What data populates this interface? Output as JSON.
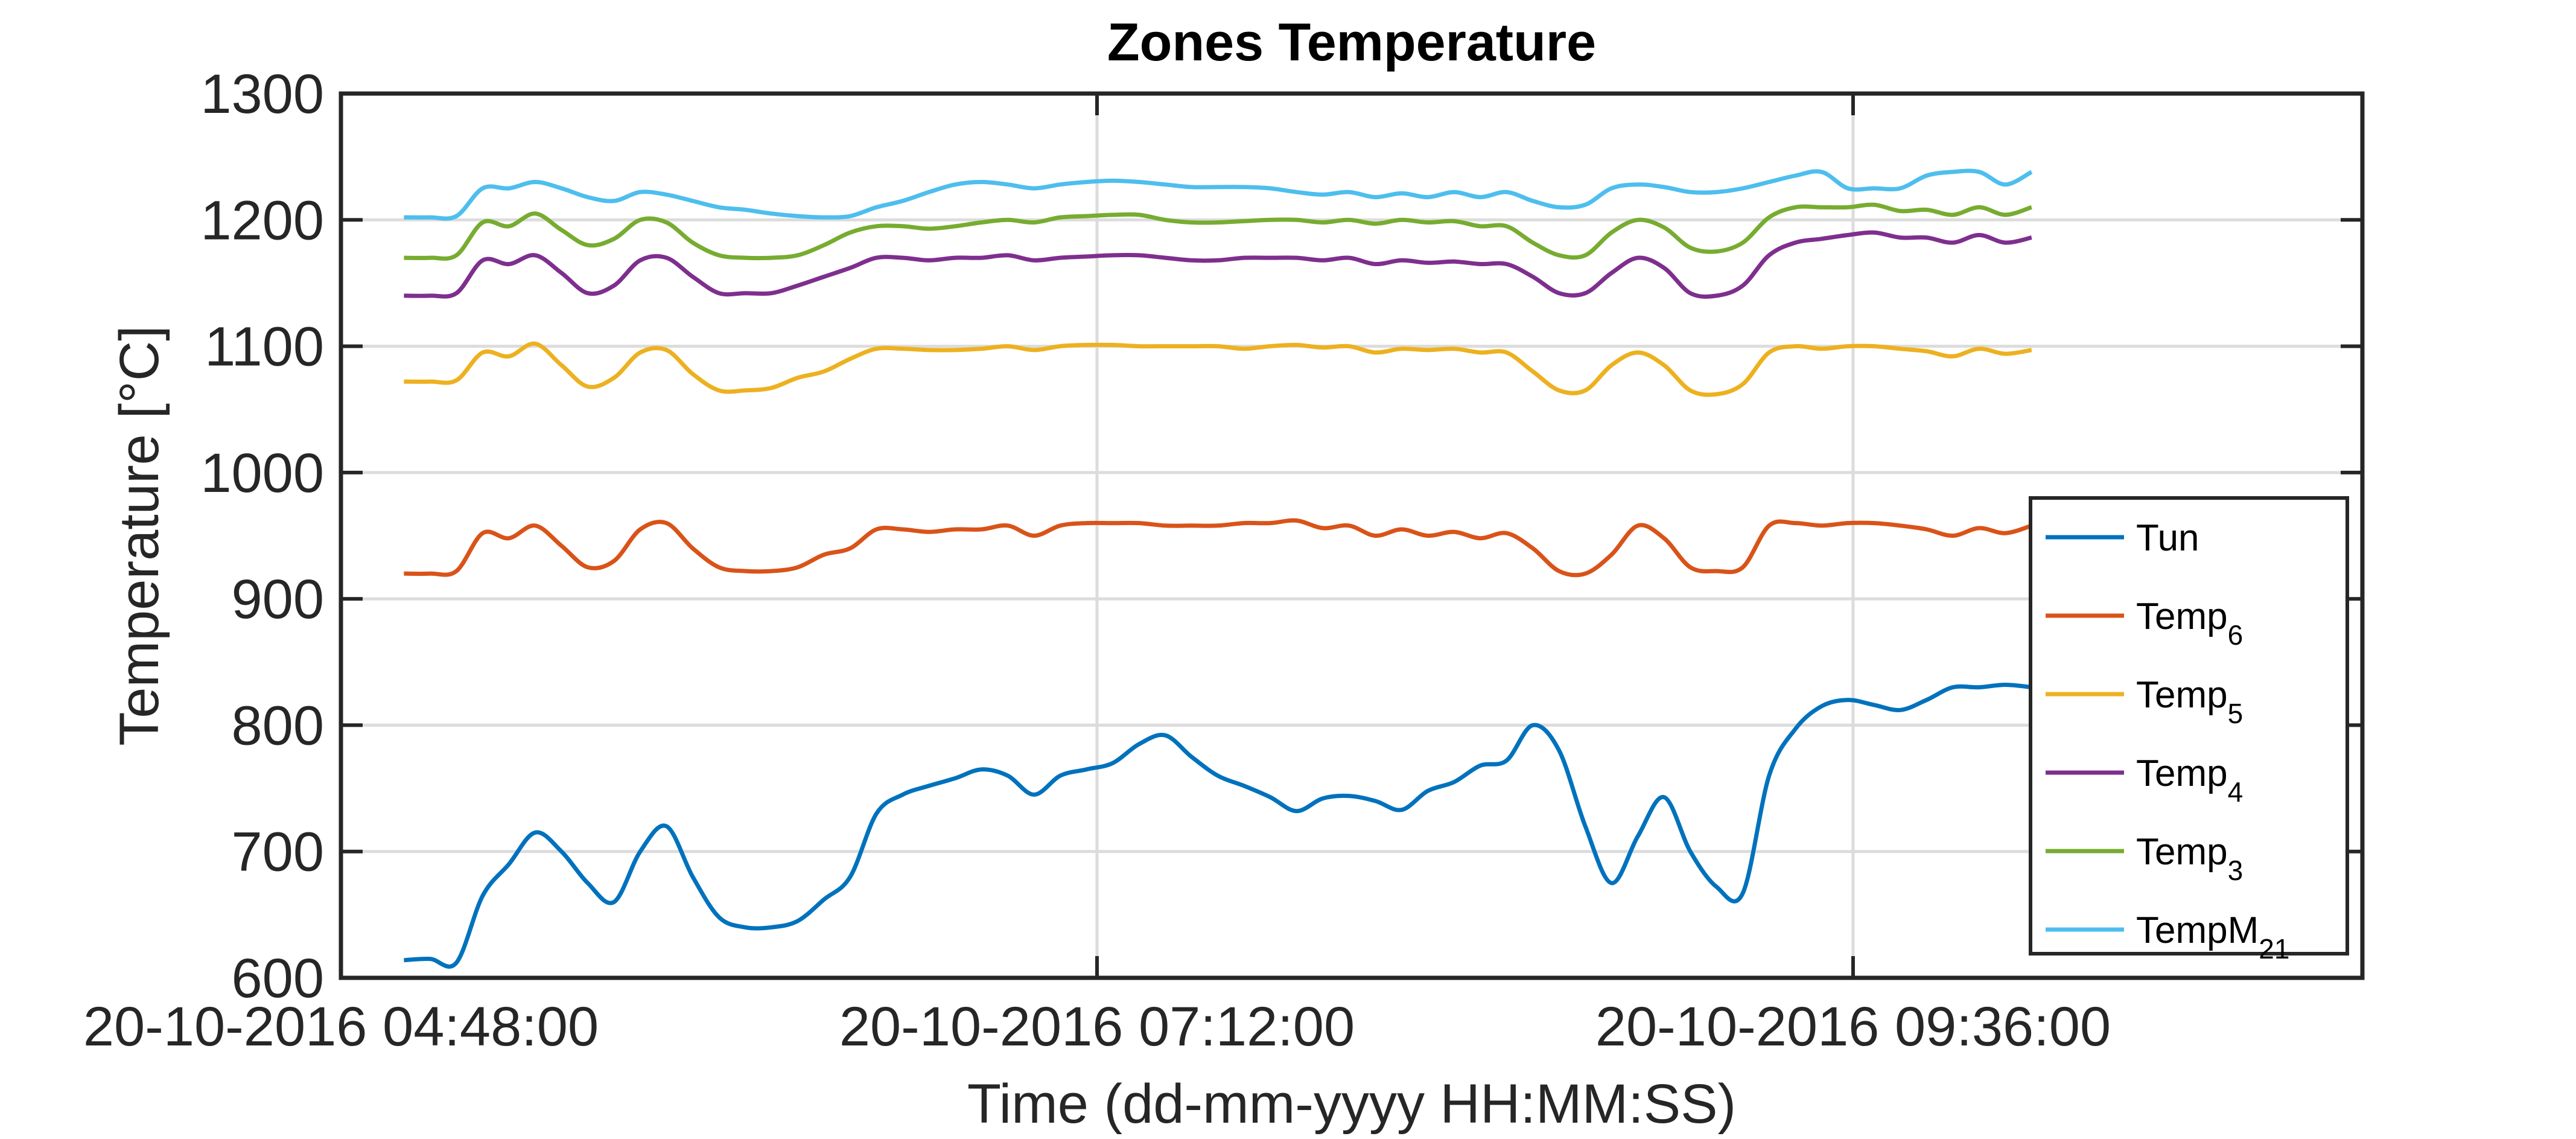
{
  "chart_data": {
    "type": "line",
    "title": "Zones Temperature",
    "xlabel": "Time (dd-mm-yyyy HH:MM:SS)",
    "ylabel": "Temperature [°C]",
    "x_unit": "20-10-2016 HH:MM",
    "xlim": [
      "04:48",
      "11:13"
    ],
    "ylim": [
      600,
      1300
    ],
    "yticks": [
      600,
      700,
      800,
      900,
      1000,
      1100,
      1200,
      1300
    ],
    "ytick_labels": [
      "600",
      "700",
      "800",
      "900",
      "1000",
      "1100",
      "1200",
      "1300"
    ],
    "xticks": [
      "04:48",
      "07:12",
      "09:36"
    ],
    "xtick_labels": [
      "20-10-2016 04:48:00",
      "20-10-2016 07:12:00",
      "20-10-2016 09:36:00"
    ],
    "grid": true,
    "legend_position": "bottom-right",
    "x": [
      "05:00",
      "05:05",
      "05:10",
      "05:15",
      "05:20",
      "05:25",
      "05:30",
      "05:35",
      "05:40",
      "05:45",
      "05:50",
      "05:55",
      "06:00",
      "06:05",
      "06:10",
      "06:15",
      "06:20",
      "06:25",
      "06:30",
      "06:35",
      "06:40",
      "06:45",
      "06:50",
      "06:55",
      "07:00",
      "07:05",
      "07:10",
      "07:15",
      "07:20",
      "07:25",
      "07:30",
      "07:35",
      "07:40",
      "07:45",
      "07:50",
      "07:55",
      "08:00",
      "08:05",
      "08:10",
      "08:15",
      "08:20",
      "08:25",
      "08:30",
      "08:35",
      "08:40",
      "08:45",
      "08:50",
      "08:55",
      "09:00",
      "09:05",
      "09:10",
      "09:15",
      "09:20",
      "09:25",
      "09:30",
      "09:35",
      "09:40",
      "09:45",
      "09:50",
      "09:55",
      "10:00",
      "10:05",
      "10:10"
    ],
    "series": [
      {
        "name": "Tun",
        "color": "#0072BD",
        "values": [
          614,
          615,
          612,
          665,
          690,
          715,
          700,
          675,
          660,
          700,
          720,
          680,
          648,
          640,
          640,
          645,
          662,
          680,
          730,
          745,
          752,
          758,
          765,
          760,
          745,
          760,
          765,
          770,
          785,
          792,
          775,
          760,
          752,
          743,
          732,
          742,
          744,
          740,
          733,
          748,
          755,
          768,
          772,
          800,
          780,
          720,
          675,
          712,
          743,
          700,
          672,
          667,
          760,
          797,
          815,
          820,
          816,
          812,
          820,
          830,
          830,
          832,
          830
        ]
      },
      {
        "name": "Temp₆",
        "color": "#D95319",
        "values": [
          920,
          920,
          922,
          952,
          948,
          958,
          942,
          925,
          930,
          955,
          960,
          940,
          925,
          922,
          922,
          925,
          935,
          940,
          955,
          955,
          953,
          955,
          955,
          958,
          950,
          958,
          960,
          960,
          960,
          958,
          958,
          958,
          960,
          960,
          962,
          956,
          958,
          950,
          955,
          950,
          953,
          948,
          952,
          940,
          922,
          920,
          935,
          958,
          948,
          925,
          922,
          925,
          958,
          960,
          958,
          960,
          960,
          958,
          955,
          950,
          956,
          952,
          958
        ]
      },
      {
        "name": "Temp₅",
        "color": "#EDB120",
        "values": [
          1072,
          1072,
          1073,
          1095,
          1092,
          1102,
          1085,
          1068,
          1075,
          1095,
          1097,
          1078,
          1065,
          1065,
          1067,
          1075,
          1080,
          1090,
          1098,
          1098,
          1097,
          1097,
          1098,
          1100,
          1097,
          1100,
          1101,
          1101,
          1100,
          1100,
          1100,
          1100,
          1098,
          1100,
          1101,
          1099,
          1100,
          1095,
          1098,
          1097,
          1098,
          1095,
          1095,
          1080,
          1065,
          1065,
          1085,
          1095,
          1085,
          1065,
          1062,
          1070,
          1095,
          1100,
          1098,
          1100,
          1100,
          1098,
          1096,
          1092,
          1098,
          1094,
          1097
        ]
      },
      {
        "name": "Temp₄",
        "color": "#7E2F8E",
        "values": [
          1140,
          1140,
          1142,
          1168,
          1165,
          1172,
          1158,
          1142,
          1148,
          1168,
          1170,
          1155,
          1142,
          1142,
          1142,
          1148,
          1155,
          1162,
          1170,
          1170,
          1168,
          1170,
          1170,
          1172,
          1168,
          1170,
          1171,
          1172,
          1172,
          1170,
          1168,
          1168,
          1170,
          1170,
          1170,
          1168,
          1170,
          1165,
          1168,
          1166,
          1167,
          1165,
          1165,
          1155,
          1142,
          1142,
          1158,
          1170,
          1162,
          1142,
          1140,
          1148,
          1172,
          1182,
          1185,
          1188,
          1190,
          1186,
          1186,
          1182,
          1188,
          1182,
          1186
        ]
      },
      {
        "name": "Temp₃",
        "color": "#77AC30",
        "values": [
          1170,
          1170,
          1172,
          1198,
          1195,
          1205,
          1192,
          1180,
          1185,
          1200,
          1198,
          1182,
          1172,
          1170,
          1170,
          1172,
          1180,
          1190,
          1195,
          1195,
          1193,
          1195,
          1198,
          1200,
          1198,
          1202,
          1203,
          1204,
          1204,
          1200,
          1198,
          1198,
          1199,
          1200,
          1200,
          1198,
          1200,
          1197,
          1200,
          1198,
          1199,
          1195,
          1195,
          1182,
          1172,
          1172,
          1190,
          1200,
          1194,
          1178,
          1175,
          1182,
          1202,
          1210,
          1210,
          1210,
          1212,
          1207,
          1208,
          1204,
          1210,
          1204,
          1210
        ]
      },
      {
        "name": "TempM₂₁",
        "color": "#4DBEEE",
        "values": [
          1202,
          1202,
          1203,
          1225,
          1225,
          1230,
          1225,
          1218,
          1215,
          1222,
          1220,
          1215,
          1210,
          1208,
          1205,
          1203,
          1202,
          1203,
          1210,
          1215,
          1222,
          1228,
          1230,
          1228,
          1225,
          1228,
          1230,
          1231,
          1230,
          1228,
          1226,
          1226,
          1226,
          1225,
          1222,
          1220,
          1222,
          1218,
          1221,
          1218,
          1222,
          1218,
          1222,
          1215,
          1210,
          1212,
          1225,
          1228,
          1226,
          1222,
          1222,
          1225,
          1230,
          1235,
          1238,
          1225,
          1225,
          1225,
          1235,
          1238,
          1238,
          1228,
          1238
        ]
      }
    ]
  }
}
